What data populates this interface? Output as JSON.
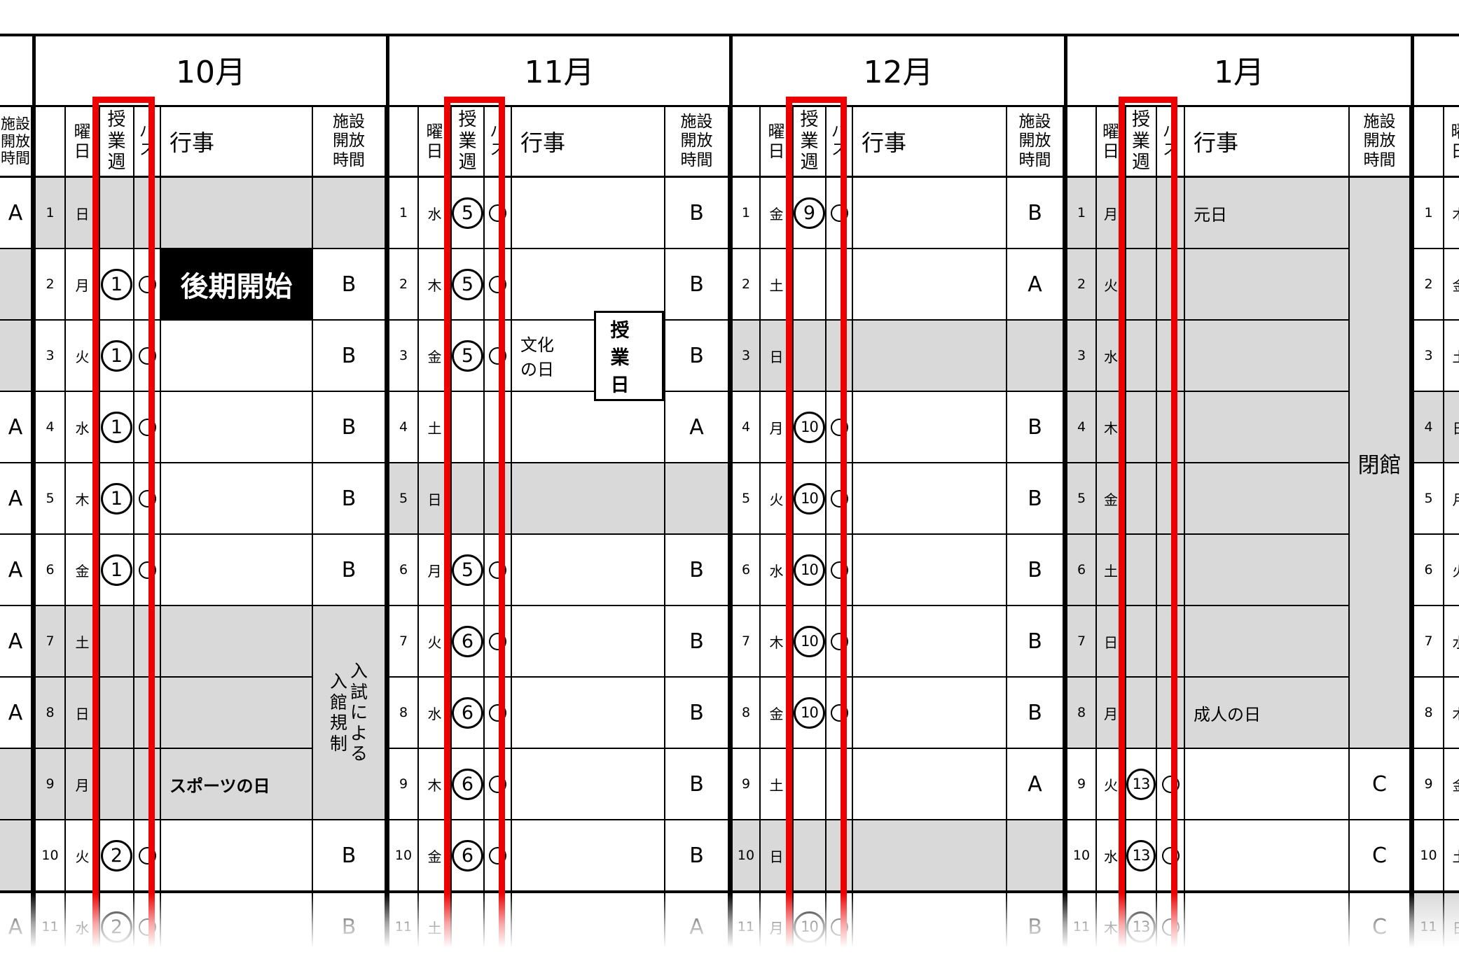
{
  "colors": {
    "accent_red": "#ee0000",
    "cell_gray": "#d9d9d9",
    "grid_black": "#000000"
  },
  "table": {
    "columns": {
      "day": "曜日",
      "week": "授業週",
      "bus": "バス",
      "event": "行事",
      "facility": "施設開放時間"
    },
    "bus_mark": "○",
    "prev_month_column": {
      "header": "施設開放時間",
      "values": [
        {
          "text": "A"
        },
        {
          "text": "",
          "gray": true
        },
        {
          "text": "",
          "gray": true
        },
        {
          "text": "A"
        },
        {
          "text": "A"
        },
        {
          "text": "A"
        },
        {
          "text": "A"
        },
        {
          "text": "A"
        },
        {
          "text": "",
          "gray": true
        },
        {
          "text": "",
          "gray": true
        },
        {
          "text": "A"
        }
      ]
    },
    "months": [
      {
        "name": "10月",
        "rows": [
          {
            "date": "1",
            "day": "日",
            "gray": true,
            "facility_gray": true
          },
          {
            "date": "2",
            "day": "月",
            "week": "1",
            "bus": "○",
            "event": "後期開始",
            "event_style": "invert",
            "facility": "B"
          },
          {
            "date": "3",
            "day": "火",
            "week": "1",
            "bus": "○",
            "facility": "B"
          },
          {
            "date": "4",
            "day": "水",
            "week": "1",
            "bus": "○",
            "facility": "B"
          },
          {
            "date": "5",
            "day": "木",
            "week": "1",
            "bus": "○",
            "facility": "B"
          },
          {
            "date": "6",
            "day": "金",
            "week": "1",
            "bus": "○",
            "facility": "B"
          },
          {
            "date": "7",
            "day": "土",
            "gray": true
          },
          {
            "date": "8",
            "day": "日",
            "gray": true
          },
          {
            "date": "9",
            "day": "月",
            "event": "スポーツの日",
            "event_bold": true,
            "gray": true
          },
          {
            "date": "10",
            "day": "火",
            "week": "2",
            "bus": "○",
            "facility": "B"
          },
          {
            "date": "11",
            "day": "水",
            "week": "2",
            "bus": "○",
            "facility": "B"
          }
        ],
        "facility_merge": {
          "from": 7,
          "to": 9,
          "lines": [
            "入試による",
            "入館規制"
          ],
          "vertical": true,
          "gray": true
        }
      },
      {
        "name": "11月",
        "rows": [
          {
            "date": "1",
            "day": "水",
            "week": "5",
            "bus": "○",
            "facility": "B"
          },
          {
            "date": "2",
            "day": "木",
            "week": "5",
            "bus": "○",
            "facility": "B"
          },
          {
            "date": "3",
            "day": "金",
            "week": "5",
            "bus": "○",
            "event": "文化の日",
            "event_badge": "授業日",
            "facility": "B"
          },
          {
            "date": "4",
            "day": "土",
            "facility": "A"
          },
          {
            "date": "5",
            "day": "日",
            "gray": true,
            "facility_gray": true
          },
          {
            "date": "6",
            "day": "月",
            "week": "5",
            "bus": "○",
            "facility": "B"
          },
          {
            "date": "7",
            "day": "火",
            "week": "6",
            "bus": "○",
            "facility": "B"
          },
          {
            "date": "8",
            "day": "水",
            "week": "6",
            "bus": "○",
            "facility": "B"
          },
          {
            "date": "9",
            "day": "木",
            "week": "6",
            "bus": "○",
            "facility": "B"
          },
          {
            "date": "10",
            "day": "金",
            "week": "6",
            "bus": "○",
            "facility": "B"
          },
          {
            "date": "11",
            "day": "土",
            "facility": "A"
          }
        ]
      },
      {
        "name": "12月",
        "rows": [
          {
            "date": "1",
            "day": "金",
            "week": "9",
            "bus": "○",
            "facility": "B"
          },
          {
            "date": "2",
            "day": "土",
            "facility": "A"
          },
          {
            "date": "3",
            "day": "日",
            "gray": true,
            "facility_gray": true
          },
          {
            "date": "4",
            "day": "月",
            "week": "10",
            "bus": "○",
            "facility": "B"
          },
          {
            "date": "5",
            "day": "火",
            "week": "10",
            "bus": "○",
            "facility": "B"
          },
          {
            "date": "6",
            "day": "水",
            "week": "10",
            "bus": "○",
            "facility": "B"
          },
          {
            "date": "7",
            "day": "木",
            "week": "10",
            "bus": "○",
            "facility": "B"
          },
          {
            "date": "8",
            "day": "金",
            "week": "10",
            "bus": "○",
            "facility": "B"
          },
          {
            "date": "9",
            "day": "土",
            "facility": "A"
          },
          {
            "date": "10",
            "day": "日",
            "gray": true,
            "facility_gray": true
          },
          {
            "date": "11",
            "day": "月",
            "week": "10",
            "bus": "○",
            "facility": "B"
          }
        ]
      },
      {
        "name": "1月",
        "rows": [
          {
            "date": "1",
            "day": "月",
            "event": "元日",
            "gray": true
          },
          {
            "date": "2",
            "day": "火",
            "gray": true
          },
          {
            "date": "3",
            "day": "水",
            "gray": true
          },
          {
            "date": "4",
            "day": "木",
            "gray": true
          },
          {
            "date": "5",
            "day": "金",
            "gray": true
          },
          {
            "date": "6",
            "day": "土",
            "gray": true
          },
          {
            "date": "7",
            "day": "日",
            "gray": true
          },
          {
            "date": "8",
            "day": "月",
            "event": "成人の日",
            "gray": true
          },
          {
            "date": "9",
            "day": "火",
            "week": "13",
            "bus": "○",
            "facility": "C"
          },
          {
            "date": "10",
            "day": "水",
            "week": "13",
            "bus": "○",
            "facility": "C"
          },
          {
            "date": "11",
            "day": "木",
            "week": "13",
            "bus": "○",
            "facility": "C"
          }
        ],
        "facility_merge": {
          "from": 1,
          "to": 8,
          "lines": [
            "閉館"
          ],
          "vertical": false,
          "gray": true
        }
      },
      {
        "name": "",
        "partial": true,
        "rows": [
          {
            "date": "1",
            "day": "木"
          },
          {
            "date": "2",
            "day": "金"
          },
          {
            "date": "3",
            "day": "土"
          },
          {
            "date": "4",
            "day": "日",
            "gray": true
          },
          {
            "date": "5",
            "day": "月"
          },
          {
            "date": "6",
            "day": "火"
          },
          {
            "date": "7",
            "day": "水"
          },
          {
            "date": "8",
            "day": "木"
          },
          {
            "date": "9",
            "day": "金"
          },
          {
            "date": "10",
            "day": "土"
          },
          {
            "date": "11",
            "day": "日",
            "gray": true
          }
        ]
      }
    ]
  }
}
